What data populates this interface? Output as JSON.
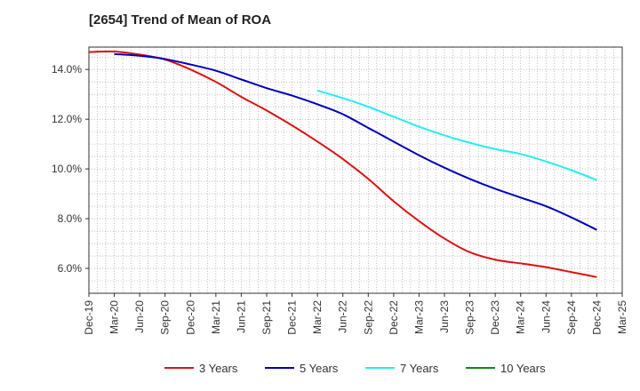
{
  "chart_data": {
    "type": "line",
    "title": "[2654]  Trend of Mean of ROA",
    "xlabel": "",
    "ylabel": "",
    "ylim": [
      5.0,
      14.9
    ],
    "yticks": [
      6.0,
      8.0,
      10.0,
      12.0,
      14.0
    ],
    "ytick_labels": [
      "6.0%",
      "8.0%",
      "10.0%",
      "12.0%",
      "14.0%"
    ],
    "x_tick_labels": [
      "Dec-19",
      "Mar-20",
      "Jun-20",
      "Sep-20",
      "Dec-20",
      "Mar-21",
      "Jun-21",
      "Sep-21",
      "Dec-21",
      "Mar-22",
      "Jun-22",
      "Sep-22",
      "Dec-22",
      "Mar-23",
      "Jun-23",
      "Sep-23",
      "Dec-23",
      "Mar-24",
      "Jun-24",
      "Sep-24",
      "Dec-24",
      "Mar-25"
    ],
    "grid": true,
    "legend_position": "bottom",
    "series": [
      {
        "name": "3 Years",
        "color": "#dd1111",
        "start_index": 0,
        "values": [
          14.7,
          14.72,
          14.6,
          14.4,
          14.0,
          13.5,
          12.9,
          12.35,
          11.75,
          11.1,
          10.4,
          9.6,
          8.7,
          7.9,
          7.2,
          6.65,
          6.35,
          6.2,
          6.05,
          5.85,
          5.65
        ]
      },
      {
        "name": "5 Years",
        "color": "#0000bb",
        "start_index": 1,
        "values": [
          14.62,
          14.55,
          14.42,
          14.2,
          13.95,
          13.6,
          13.25,
          12.95,
          12.6,
          12.2,
          11.65,
          11.1,
          10.55,
          10.05,
          9.6,
          9.2,
          8.85,
          8.5,
          8.05,
          7.55
        ]
      },
      {
        "name": "7 Years",
        "color": "#22eeee",
        "start_index": 9,
        "values": [
          13.15,
          12.85,
          12.5,
          12.1,
          11.7,
          11.35,
          11.05,
          10.8,
          10.6,
          10.3,
          9.95,
          9.55
        ]
      },
      {
        "name": "10 Years",
        "color": "#118811",
        "start_index": 0,
        "values": []
      }
    ]
  }
}
